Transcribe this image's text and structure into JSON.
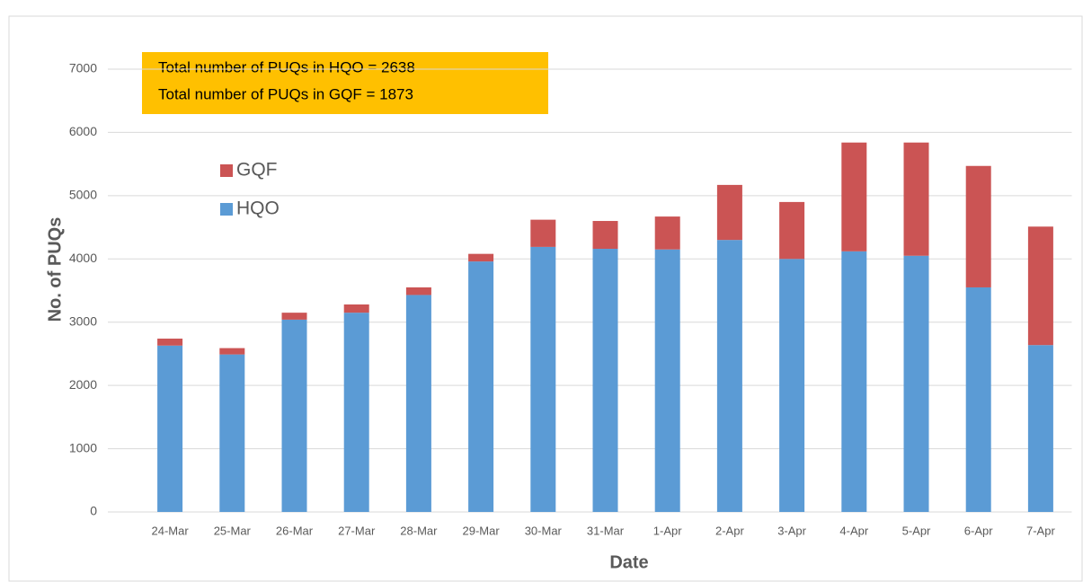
{
  "chart_data": {
    "type": "stacked_bar",
    "x_label": "Date",
    "y_label": "No. of PUQs",
    "annotations": [
      "Total number of PUQs in HQO = 2638",
      "Total number of PUQs in GQF = 1873"
    ],
    "categories": [
      "24-Mar",
      "25-Mar",
      "26-Mar",
      "27-Mar",
      "28-Mar",
      "29-Mar",
      "30-Mar",
      "31-Mar",
      "1-Apr",
      "2-Apr",
      "3-Apr",
      "4-Apr",
      "5-Apr",
      "6-Apr",
      "7-Apr"
    ],
    "series": [
      {
        "name": "HQO",
        "color": "#5b9bd5",
        "values": [
          2630,
          2490,
          3040,
          3150,
          3430,
          3960,
          4190,
          4160,
          4150,
          4300,
          4000,
          4120,
          4050,
          3550,
          2638
        ]
      },
      {
        "name": "GQF",
        "color": "#cb5454",
        "values": [
          110,
          100,
          110,
          130,
          120,
          120,
          430,
          440,
          520,
          870,
          900,
          1720,
          1790,
          1920,
          1873
        ]
      }
    ],
    "ylim": [
      0,
      7000
    ],
    "yticks": [
      0,
      1000,
      2000,
      3000,
      4000,
      5000,
      6000,
      7000
    ],
    "grid": true,
    "legend": "upper left"
  }
}
